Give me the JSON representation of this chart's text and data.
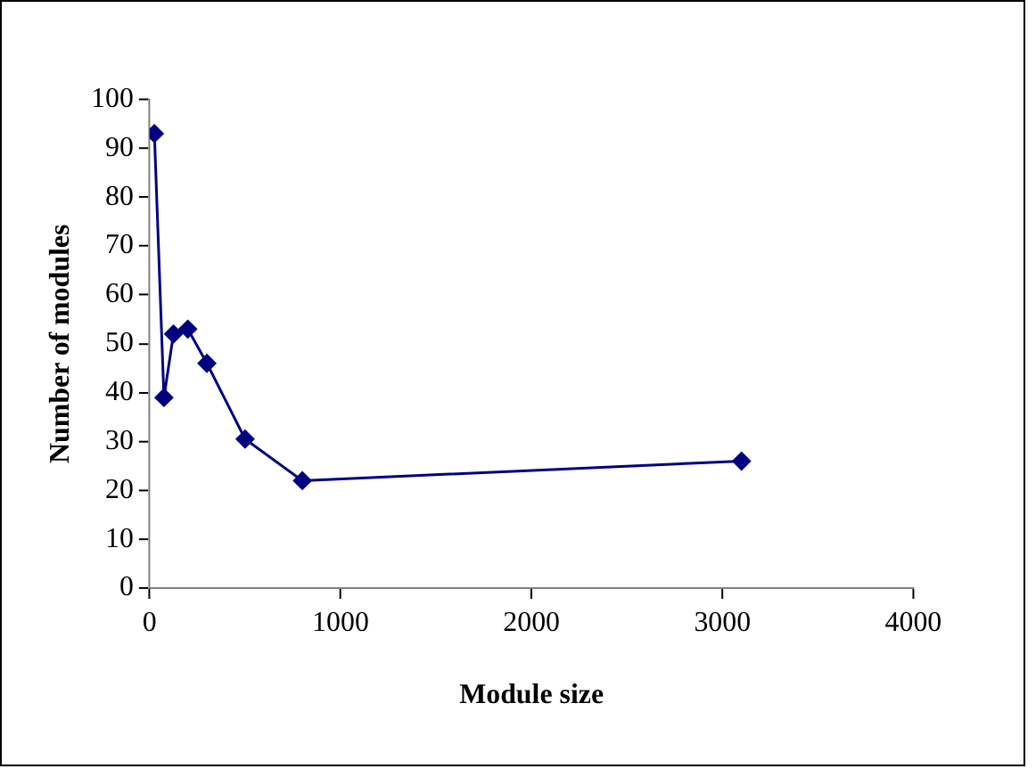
{
  "chart_data": {
    "type": "line",
    "xlabel": "Module size",
    "ylabel": "Number of modules",
    "x": [
      25,
      75,
      125,
      200,
      300,
      500,
      800,
      3100
    ],
    "series": [
      {
        "color": "#000080",
        "values": [
          93,
          39,
          52,
          53,
          46,
          30.5,
          22,
          26
        ]
      }
    ],
    "xlim": [
      0,
      4000
    ],
    "xticks": [
      0,
      1000,
      2000,
      3000,
      4000
    ],
    "ylim": [
      0,
      100
    ],
    "yticks": [
      0,
      10,
      20,
      30,
      40,
      50,
      60,
      70,
      80,
      90,
      100
    ],
    "grid": false,
    "legend": false,
    "marker": "diamond",
    "line_style": "solid"
  }
}
